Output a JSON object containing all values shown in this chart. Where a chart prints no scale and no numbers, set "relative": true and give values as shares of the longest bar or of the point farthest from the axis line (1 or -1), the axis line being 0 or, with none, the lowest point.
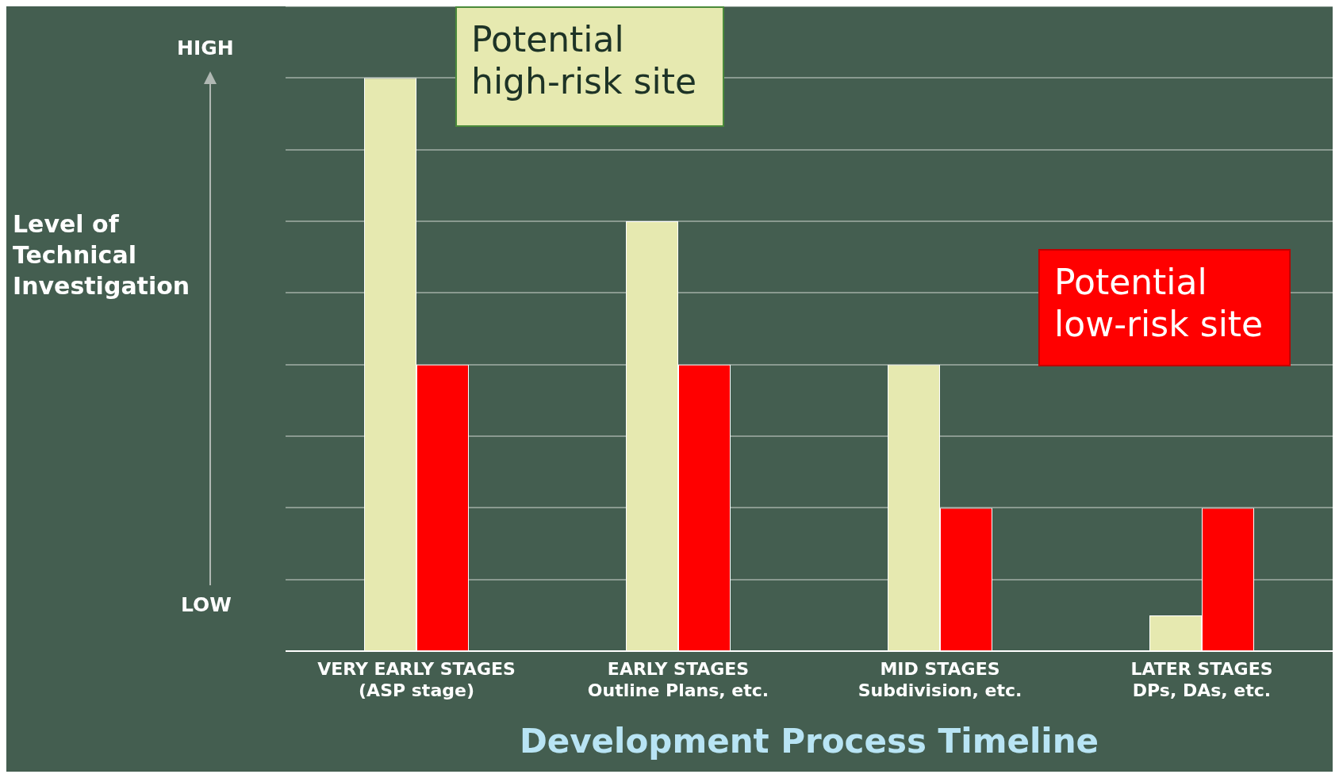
{
  "chart_data": {
    "type": "bar",
    "relative": true,
    "xlabel": "Development Process Timeline",
    "ylabel": "Level of Technical Investigation",
    "categories": [
      "VERY EARLY STAGES\n(ASP stage)",
      "EARLY STAGES\nOutline Plans, etc.",
      "MID STAGES\nSubdivision, etc.",
      "LATER STAGES\nDPs, DAs, etc."
    ],
    "series": [
      {
        "name": "Potential high-risk site",
        "color": "#e6e9b0",
        "values": [
          1,
          0.75,
          0.5,
          0.0625
        ]
      },
      {
        "name": "Potential low-risk site",
        "color": "#ff0000",
        "values": [
          0.5,
          0.5,
          0.25,
          0.25
        ]
      }
    ],
    "annotations": [
      "HIGH",
      "LOW"
    ],
    "grid": "y",
    "legend": "top right"
  }
}
